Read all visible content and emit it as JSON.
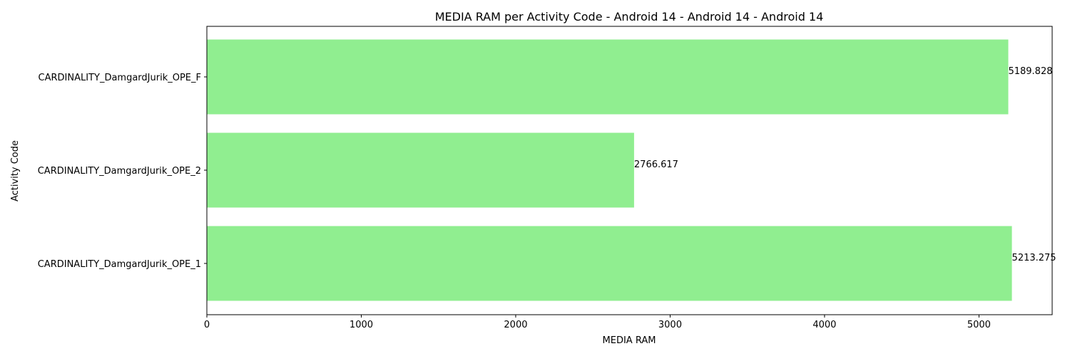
{
  "chart_data": {
    "type": "bar",
    "orientation": "horizontal",
    "title": "MEDIA RAM per Activity Code - Android 14 - Android 14 - Android 14",
    "xlabel": "MEDIA RAM",
    "ylabel": "Activity Code",
    "categories": [
      "CARDINALITY_DamgardJurik_OPE_1",
      "CARDINALITY_DamgardJurik_OPE_2",
      "CARDINALITY_DamgardJurik_OPE_F"
    ],
    "values": [
      5213.275,
      2766.617,
      5189.828
    ],
    "value_labels": [
      "5213.275",
      "2766.617",
      "5189.828"
    ],
    "xlim": [
      0,
      5474
    ],
    "xticks": [
      0,
      1000,
      2000,
      3000,
      4000,
      5000
    ],
    "xtick_labels": [
      "0",
      "1000",
      "2000",
      "3000",
      "4000",
      "5000"
    ],
    "bar_color": "#90ee90",
    "grid": false,
    "legend": false
  }
}
